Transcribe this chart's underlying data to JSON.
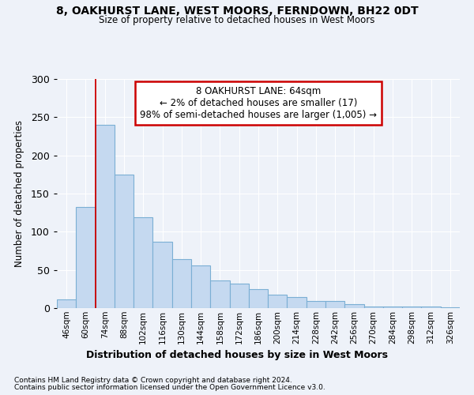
{
  "title1": "8, OAKHURST LANE, WEST MOORS, FERNDOWN, BH22 0DT",
  "title2": "Size of property relative to detached houses in West Moors",
  "xlabel": "Distribution of detached houses by size in West Moors",
  "ylabel": "Number of detached properties",
  "heights": [
    11,
    132,
    240,
    175,
    119,
    87,
    64,
    56,
    36,
    32,
    25,
    18,
    15,
    9,
    9,
    5,
    2,
    2,
    2,
    2,
    1
  ],
  "bin_labels": [
    "46sqm",
    "60sqm",
    "74sqm",
    "88sqm",
    "102sqm",
    "116sqm",
    "130sqm",
    "144sqm",
    "158sqm",
    "172sqm",
    "186sqm",
    "200sqm",
    "214sqm",
    "228sqm",
    "242sqm",
    "256sqm",
    "270sqm",
    "284sqm",
    "298sqm",
    "312sqm",
    "326sqm"
  ],
  "bar_color": "#c5d9f0",
  "bar_edge_color": "#7bafd4",
  "vline_x": 1.5,
  "vline_color": "#cc0000",
  "annotation_text": "8 OAKHURST LANE: 64sqm\n← 2% of detached houses are smaller (17)\n98% of semi-detached houses are larger (1,005) →",
  "annotation_box_color": "#ffffff",
  "annotation_box_edge": "#cc0000",
  "ylim": [
    0,
    300
  ],
  "yticks": [
    0,
    50,
    100,
    150,
    200,
    250,
    300
  ],
  "background_color": "#eef2f9",
  "grid_color": "#ffffff",
  "footer1": "Contains HM Land Registry data © Crown copyright and database right 2024.",
  "footer2": "Contains public sector information licensed under the Open Government Licence v3.0."
}
